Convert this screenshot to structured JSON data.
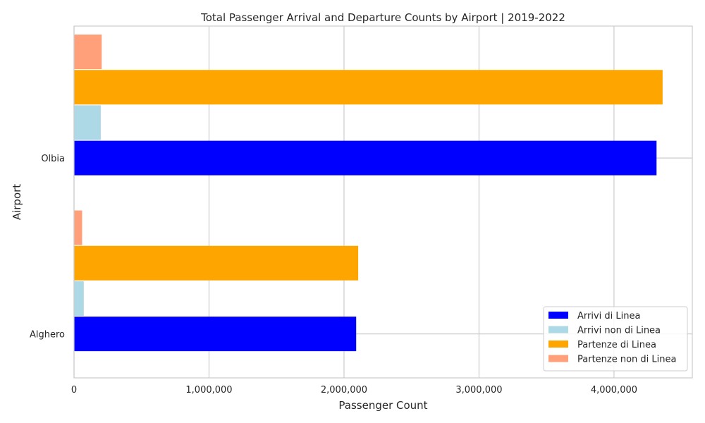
{
  "chart_data": {
    "type": "bar",
    "orientation": "horizontal",
    "title": "Total Passenger Arrival and Departure Counts by Airport | 2019-2022",
    "xlabel": "Passenger Count",
    "ylabel": "Airport",
    "categories": [
      "Alghero",
      "Olbia"
    ],
    "series": [
      {
        "name": "Arrivi di Linea",
        "color": "#0000ff",
        "values": [
          2090000,
          4315000
        ]
      },
      {
        "name": "Arrivi non di Linea",
        "color": "#add8e6",
        "values": [
          72000,
          198000
        ]
      },
      {
        "name": "Partenze di Linea",
        "color": "#ffa500",
        "values": [
          2105000,
          4360000
        ]
      },
      {
        "name": "Partenze non di Linea",
        "color": "#ffa07a",
        "values": [
          60000,
          205000
        ]
      }
    ],
    "xlim": [
      0,
      4580000
    ],
    "xticks": [
      0,
      1000000,
      2000000,
      3000000,
      4000000
    ],
    "xtick_labels": [
      "0",
      "1,000,000",
      "2,000,000",
      "3,000,000",
      "4,000,000"
    ],
    "grid": true,
    "legend_position": "lower-right"
  }
}
